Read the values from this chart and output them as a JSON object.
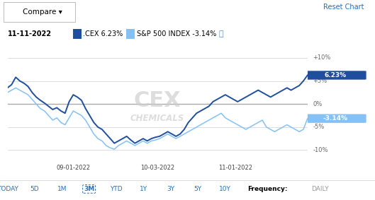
{
  "title_date": "11-11-2022",
  "cex_label": ".CEX 6.23%",
  "sp500_label": "S&P 500 INDEX -3.14%",
  "cex_final": 6.23,
  "sp500_final": -3.14,
  "x_ticks": [
    "09-01-2022",
    "10-03-2022",
    "11-01-2022"
  ],
  "x_tick_pct": [
    0.22,
    0.5,
    0.76
  ],
  "y_vals": [
    10,
    5,
    0,
    -5,
    -10
  ],
  "ylim": [
    -13,
    13
  ],
  "watermark_line1": "CEX",
  "watermark_line2": "CHEMICALS",
  "nav_items": [
    "TODAY",
    "5D",
    "1M",
    "3M",
    "YTD",
    "1Y",
    "3Y",
    "5Y",
    "10Y"
  ],
  "active_nav": "3M",
  "freq_label": "Frequency:",
  "freq_value": "DAILY",
  "compare_label": "Compare ▾",
  "reset_label": "Reset Chart",
  "cex_color": "#1f4e9e",
  "sp500_color": "#85c1f5",
  "bg_color": "#ffffff",
  "plot_bg": "#ffffff",
  "grid_color": "#d0d0d0",
  "nav_color": "#2070c0",
  "header_bg": "#eeeeee",
  "zero_line_color": "#aaaaaa",
  "cex_data": [
    3.5,
    4.2,
    5.8,
    5.0,
    4.5,
    3.8,
    2.5,
    1.5,
    0.8,
    0.2,
    -0.5,
    -1.2,
    -0.8,
    -1.5,
    -2.0,
    0.5,
    2.0,
    1.5,
    0.8,
    -1.0,
    -2.5,
    -4.0,
    -5.0,
    -5.5,
    -6.5,
    -7.5,
    -8.5,
    -8.0,
    -7.5,
    -7.0,
    -7.8,
    -8.5,
    -8.0,
    -7.5,
    -8.0,
    -7.5,
    -7.2,
    -7.0,
    -6.5,
    -6.0,
    -6.5,
    -7.0,
    -6.5,
    -5.5,
    -4.0,
    -3.0,
    -2.0,
    -1.5,
    -1.0,
    -0.5,
    0.5,
    1.0,
    1.5,
    2.0,
    1.5,
    1.0,
    0.5,
    1.0,
    1.5,
    2.0,
    2.5,
    3.0,
    2.5,
    2.0,
    1.5,
    2.0,
    2.5,
    3.0,
    3.5,
    3.0,
    3.5,
    4.0,
    5.0,
    6.23
  ],
  "sp500_data": [
    2.5,
    3.0,
    3.5,
    3.0,
    2.5,
    2.0,
    1.0,
    0.0,
    -1.0,
    -1.5,
    -2.5,
    -3.5,
    -3.0,
    -4.0,
    -4.5,
    -3.0,
    -1.5,
    -2.0,
    -2.5,
    -3.5,
    -5.0,
    -6.5,
    -7.5,
    -8.0,
    -9.0,
    -9.5,
    -9.8,
    -9.0,
    -8.5,
    -8.0,
    -8.5,
    -9.0,
    -8.5,
    -8.0,
    -8.5,
    -8.0,
    -7.8,
    -7.5,
    -7.0,
    -6.5,
    -7.0,
    -7.5,
    -7.0,
    -6.5,
    -6.0,
    -5.5,
    -5.0,
    -4.5,
    -4.0,
    -3.5,
    -3.0,
    -2.5,
    -2.0,
    -3.0,
    -3.5,
    -4.0,
    -4.5,
    -5.0,
    -5.5,
    -5.0,
    -4.5,
    -4.0,
    -3.5,
    -5.0,
    -5.5,
    -6.0,
    -5.5,
    -5.0,
    -4.5,
    -5.0,
    -5.5,
    -6.0,
    -5.5,
    -3.14
  ]
}
